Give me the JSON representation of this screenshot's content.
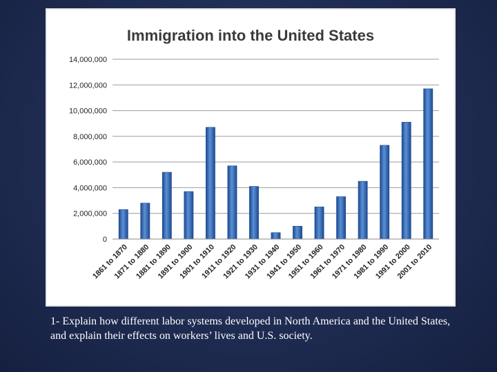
{
  "slide": {
    "caption": "1- Explain how different labor systems developed in North America and the United States, and explain their effects on workers’ lives and U.S. society."
  },
  "colors": {
    "background": "#1f2c52",
    "bar": "#2e66b8",
    "bar_dark": "#1c4a8f",
    "bar_light": "#5b8fd6"
  },
  "chart_data": {
    "type": "bar",
    "title": "Immigration into the United States",
    "xlabel": "",
    "ylabel": "",
    "ylim": [
      0,
      14000000
    ],
    "yticks": [
      0,
      2000000,
      4000000,
      6000000,
      8000000,
      10000000,
      12000000,
      14000000
    ],
    "ytick_labels": [
      "0",
      "2,000,000",
      "4,000,000",
      "6,000,000",
      "8,000,000",
      "10,000,000",
      "12,000,000",
      "14,000,000"
    ],
    "grid": true,
    "legend": "none",
    "categories": [
      "1861 to 1870",
      "1871 to 1880",
      "1881 to 1890",
      "1891 to 1900",
      "1901 to 1910",
      "1911 to 1920",
      "1921 to 1930",
      "1931 to 1940",
      "1941 to 1950",
      "1951 to 1960",
      "1961 to 1970",
      "1971 to 1980",
      "1981 to 1990",
      "1991 to 2000",
      "2001 to 2010"
    ],
    "values": [
      2300000,
      2800000,
      5200000,
      3700000,
      8700000,
      5700000,
      4100000,
      500000,
      1000000,
      2500000,
      3300000,
      4500000,
      7300000,
      9100000,
      11700000
    ]
  }
}
